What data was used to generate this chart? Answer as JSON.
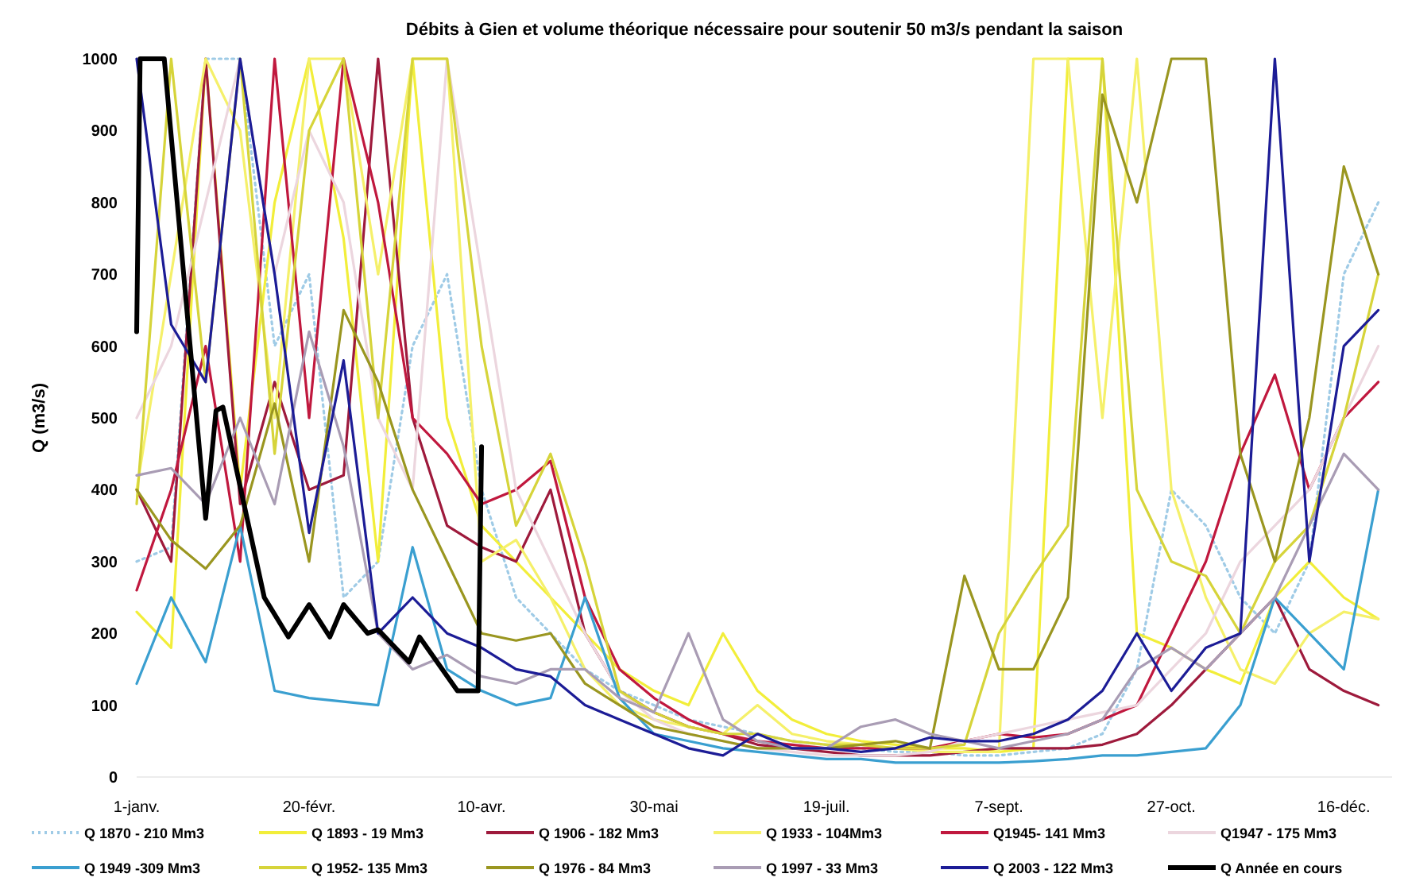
{
  "chart_data": {
    "type": "line",
    "title": "Débits à Gien et volume théorique nécessaire pour soutenir 50 m3/s pendant la saison",
    "ylabel": "Q (m3/s)",
    "x": [
      "--01-01",
      "--01-11",
      "--01-21",
      "--01-31",
      "--02-10",
      "--02-20",
      "--03-01",
      "--03-11",
      "--03-21",
      "--03-31",
      "--04-10",
      "--04-20",
      "--04-30",
      "--05-10",
      "--05-20",
      "--05-30",
      "--06-09",
      "--06-19",
      "--06-29",
      "--07-09",
      "--07-19",
      "--07-29",
      "--08-08",
      "--08-18",
      "--08-28",
      "--09-07",
      "--09-17",
      "--09-27",
      "--10-07",
      "--10-17",
      "--10-27",
      "--11-06",
      "--11-16",
      "--11-26",
      "--12-06",
      "--12-16",
      "--12-26"
    ],
    "xlim": [
      "--01-01",
      "--12-30"
    ],
    "xticks": [
      {
        "value": "--01-01",
        "label": "1-janv."
      },
      {
        "value": "--02-20",
        "label": "20-févr."
      },
      {
        "value": "--04-10",
        "label": "10-avr."
      },
      {
        "value": "--05-30",
        "label": "30-mai"
      },
      {
        "value": "--07-19",
        "label": "19-juil."
      },
      {
        "value": "--09-07",
        "label": "7-sept."
      },
      {
        "value": "--10-27",
        "label": "27-oct."
      },
      {
        "value": "--12-16",
        "label": "16-déc."
      }
    ],
    "ylim": [
      0,
      1000
    ],
    "yticks": [
      0,
      100,
      200,
      300,
      400,
      500,
      600,
      700,
      800,
      900,
      1000
    ],
    "grid": false,
    "legend": "bottom",
    "series": [
      {
        "name": "Q 1870  - 210 Mm3",
        "color": "#9fcbe6",
        "line_style": "dotted",
        "values": [
          300,
          320,
          1000,
          1000,
          600,
          700,
          250,
          300,
          600,
          700,
          400,
          250,
          200,
          150,
          120,
          100,
          80,
          70,
          60,
          50,
          45,
          40,
          35,
          35,
          30,
          30,
          35,
          40,
          60,
          150,
          400,
          350,
          250,
          200,
          300,
          700,
          800
        ]
      },
      {
        "name": "Q 1893 - 19 Mm3",
        "color": "#f2ee3a",
        "values": [
          230,
          180,
          1000,
          400,
          800,
          1000,
          750,
          300,
          1000,
          500,
          350,
          300,
          250,
          200,
          150,
          120,
          100,
          200,
          120,
          80,
          60,
          50,
          45,
          40,
          40,
          35,
          40,
          1000,
          1000,
          200,
          180,
          150,
          130,
          250,
          300,
          250,
          220
        ]
      },
      {
        "name": "Q 1906 - 182 Mm3",
        "color": "#9e1a3c",
        "values": [
          400,
          300,
          1000,
          380,
          550,
          400,
          420,
          1000,
          500,
          350,
          320,
          300,
          400,
          200,
          120,
          90,
          70,
          60,
          45,
          40,
          35,
          30,
          30,
          30,
          35,
          40,
          40,
          40,
          45,
          60,
          100,
          150,
          200,
          250,
          150,
          120,
          100
        ]
      },
      {
        "name": "Q 1933 - 104Mm3",
        "color": "#f5f06a",
        "values": [
          400,
          700,
          1000,
          900,
          500,
          1000,
          1000,
          700,
          1000,
          1000,
          300,
          330,
          250,
          150,
          100,
          80,
          70,
          60,
          100,
          60,
          50,
          45,
          40,
          35,
          35,
          35,
          1000,
          1000,
          500,
          1000,
          400,
          250,
          150,
          130,
          200,
          230,
          220
        ]
      },
      {
        "name": "Q1945- 141 Mm3",
        "color": "#c0183e",
        "values": [
          260,
          400,
          600,
          300,
          1000,
          500,
          1000,
          800,
          500,
          450,
          380,
          400,
          440,
          250,
          150,
          110,
          80,
          60,
          50,
          45,
          40,
          40,
          40,
          40,
          50,
          60,
          55,
          60,
          80,
          100,
          200,
          300,
          450,
          560,
          400,
          500,
          550
        ]
      },
      {
        "name": "Q1947 - 175 Mm3",
        "color": "#ecd6de",
        "values": [
          500,
          600,
          800,
          1000,
          700,
          900,
          800,
          500,
          400,
          1000,
          700,
          400,
          300,
          200,
          120,
          80,
          60,
          50,
          40,
          35,
          30,
          30,
          30,
          35,
          50,
          60,
          70,
          80,
          90,
          100,
          150,
          200,
          300,
          350,
          400,
          500,
          600
        ]
      },
      {
        "name": "Q 1949 -309 Mm3",
        "color": "#3a9fd0",
        "values": [
          130,
          250,
          160,
          350,
          120,
          110,
          105,
          100,
          320,
          150,
          120,
          100,
          110,
          250,
          110,
          60,
          50,
          40,
          35,
          30,
          25,
          25,
          20,
          20,
          20,
          20,
          22,
          25,
          30,
          30,
          35,
          40,
          100,
          250,
          200,
          150,
          400
        ]
      },
      {
        "name": "Q 1952- 135 Mm3",
        "color": "#d6d43a",
        "values": [
          380,
          1000,
          550,
          1000,
          450,
          900,
          1000,
          500,
          1000,
          1000,
          600,
          350,
          450,
          300,
          120,
          90,
          70,
          60,
          60,
          50,
          45,
          45,
          40,
          40,
          45,
          200,
          280,
          350,
          1000,
          400,
          300,
          280,
          200,
          300,
          350,
          500,
          700
        ]
      },
      {
        "name": "Q 1976 - 84 Mm3",
        "color": "#9a9620",
        "values": [
          400,
          330,
          290,
          350,
          520,
          300,
          650,
          550,
          400,
          300,
          200,
          190,
          200,
          130,
          100,
          70,
          60,
          50,
          40,
          40,
          40,
          45,
          50,
          40,
          280,
          150,
          150,
          250,
          950,
          800,
          1000,
          1000,
          450,
          300,
          500,
          850,
          700
        ]
      },
      {
        "name": "Q 1997 - 33 Mm3",
        "color": "#a99cb4",
        "values": [
          420,
          430,
          380,
          500,
          380,
          620,
          460,
          200,
          150,
          170,
          140,
          130,
          150,
          150,
          110,
          90,
          200,
          80,
          50,
          40,
          40,
          70,
          80,
          60,
          50,
          40,
          50,
          60,
          80,
          150,
          180,
          150,
          200,
          250,
          350,
          450,
          400
        ]
      },
      {
        "name": "Q 2003 - 122 Mm3",
        "color": "#1c1c96",
        "values": [
          1000,
          630,
          550,
          1000,
          700,
          340,
          580,
          200,
          250,
          200,
          180,
          150,
          140,
          100,
          80,
          60,
          40,
          30,
          60,
          40,
          40,
          35,
          40,
          55,
          50,
          50,
          60,
          80,
          120,
          200,
          120,
          180,
          200,
          1000,
          300,
          600,
          650
        ]
      },
      {
        "name": "Q Année en cours",
        "color": "#000000",
        "x": [
          "--01-01",
          "--01-02",
          "--01-09",
          "--01-21",
          "--01-24",
          "--01-26",
          "--02-07",
          "--02-14",
          "--02-20",
          "--02-26",
          "--03-01",
          "--03-08",
          "--03-11",
          "--03-20",
          "--03-23",
          "--04-03",
          "--04-09",
          "--04-10"
        ],
        "values": [
          620,
          1000,
          1000,
          360,
          510,
          515,
          250,
          195,
          240,
          195,
          240,
          200,
          205,
          160,
          195,
          120,
          120,
          460
        ]
      }
    ]
  }
}
